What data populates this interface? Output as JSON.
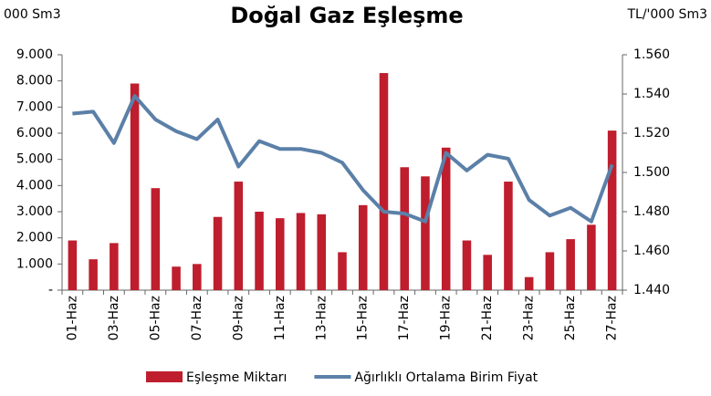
{
  "chart_data": {
    "type": "bar_line",
    "title": "Doğal Gaz Eşleşme",
    "y_label": "000 Sm3",
    "y2_label": "TL/'000 Sm3",
    "categories": [
      "01-Haz",
      null,
      "03-Haz",
      null,
      "05-Haz",
      null,
      "07-Haz",
      null,
      "09-Haz",
      null,
      "11-Haz",
      null,
      "13-Haz",
      null,
      "15-Haz",
      null,
      "17-Haz",
      null,
      "19-Haz",
      null,
      "21-Haz",
      null,
      "23-Haz",
      null,
      "25-Haz",
      null,
      "27-Haz"
    ],
    "series": [
      {
        "name": "Eşleşme Miktarı",
        "type": "bar",
        "color": "#be1e2d",
        "values": [
          1900,
          1180,
          1800,
          7900,
          3900,
          900,
          1000,
          2800,
          4150,
          3000,
          2750,
          2950,
          2900,
          1450,
          3250,
          8300,
          4700,
          4350,
          5450,
          1900,
          1350,
          4150,
          500,
          1450,
          1950,
          2500,
          6100
        ]
      },
      {
        "name": "Ağırlıklı Ortalama Birim Fiyat",
        "type": "line",
        "axis": "y2",
        "color": "#5b80a8",
        "values": [
          1530,
          1531,
          1515,
          1539,
          1527,
          1521,
          1517,
          1527,
          1503,
          1516,
          1512,
          1512,
          1510,
          1505,
          1491,
          1480,
          1479,
          1475,
          1510,
          1501,
          1509,
          1507,
          1486,
          1478,
          1482,
          1475,
          1504
        ]
      }
    ],
    "ylim": [
      0,
      9000
    ],
    "yticks": [
      {
        "value": 0,
        "label": "-"
      },
      {
        "value": 1000,
        "label": "1.000"
      },
      {
        "value": 2000,
        "label": "2.000"
      },
      {
        "value": 3000,
        "label": "3.000"
      },
      {
        "value": 4000,
        "label": "4.000"
      },
      {
        "value": 5000,
        "label": "5.000"
      },
      {
        "value": 6000,
        "label": "6.000"
      },
      {
        "value": 7000,
        "label": "7.000"
      },
      {
        "value": 8000,
        "label": "8.000"
      },
      {
        "value": 9000,
        "label": "9.000"
      }
    ],
    "y2lim": [
      1440,
      1560
    ],
    "y2ticks": [
      {
        "value": 1440,
        "label": "1.440"
      },
      {
        "value": 1460,
        "label": "1.460"
      },
      {
        "value": 1480,
        "label": "1.480"
      },
      {
        "value": 1500,
        "label": "1.500"
      },
      {
        "value": 1520,
        "label": "1.520"
      },
      {
        "value": 1540,
        "label": "1.540"
      },
      {
        "value": 1560,
        "label": "1.560"
      }
    ],
    "legend": "bottom"
  }
}
